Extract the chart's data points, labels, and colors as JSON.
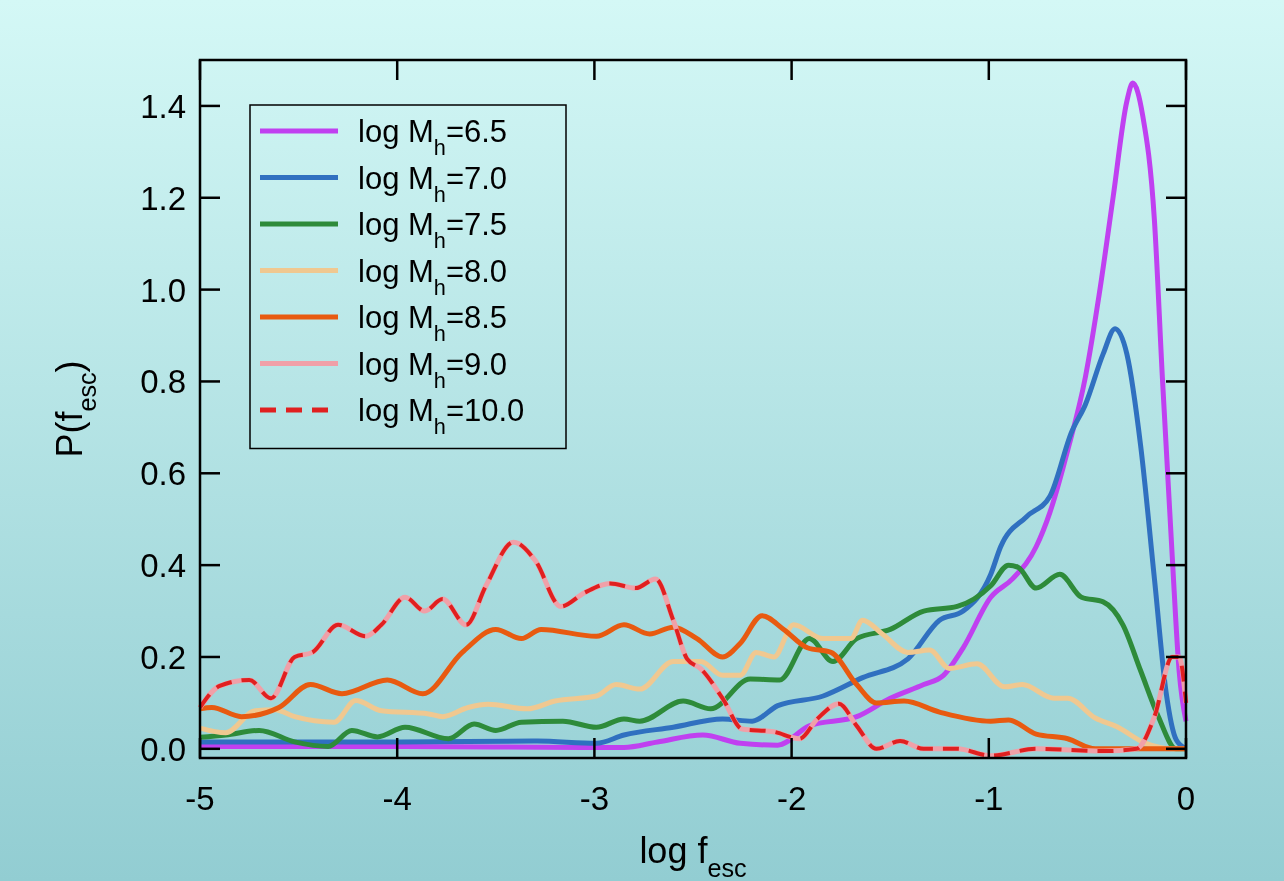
{
  "chart_data": {
    "type": "line",
    "xlabel": "log f$_{esc}$",
    "ylabel": "P(f$_{esc}$)",
    "xlim": [
      -5,
      0
    ],
    "ylim": [
      -0.02,
      1.5
    ],
    "xticks": [
      -5,
      -4,
      -3,
      -2,
      -1,
      0
    ],
    "yticks": [
      {
        "value": 0,
        "label": "0.0"
      },
      0.2,
      0.4,
      0.6,
      0.8,
      {
        "value": 1,
        "label": "1.0"
      },
      1.2,
      1.4
    ],
    "grid": false,
    "legend": "top left",
    "series": [
      {
        "name": "log M$_{h}$=6.5",
        "color": "#c040f0",
        "x": [
          -5,
          -4,
          -3.02,
          -2.85,
          -2.68,
          -2.45,
          -2.26,
          -2.07,
          -1.91,
          -1.67,
          -1.5,
          -1.33,
          -1.23,
          -1.13,
          -0.99,
          -0.88,
          -0.76,
          -0.69,
          -0.6,
          -0.51,
          -0.44,
          -0.37,
          -0.3,
          -0.27,
          -0.22,
          -0.16,
          -0.12,
          -0.07,
          -0.035,
          0
        ],
        "values": [
          0.005,
          0.005,
          0.003,
          0.003,
          0.015,
          0.03,
          0.012,
          0.008,
          0.05,
          0.07,
          0.11,
          0.14,
          0.16,
          0.22,
          0.33,
          0.37,
          0.44,
          0.515,
          0.65,
          0.81,
          0.99,
          1.2,
          1.41,
          1.45,
          1.38,
          1.15,
          0.81,
          0.42,
          0.17,
          0.06
        ]
      },
      {
        "name": "log M$_{h}$=7.0",
        "color": "#3070c0",
        "x": [
          -5,
          -4,
          -3.29,
          -2.99,
          -2.85,
          -2.6,
          -2.35,
          -2.2,
          -2.07,
          -1.84,
          -1.64,
          -1.41,
          -1.25,
          -1.13,
          -0.99,
          -0.94,
          -0.81,
          -0.69,
          -0.58,
          -0.51,
          -0.42,
          -0.36,
          -0.3,
          -0.23,
          -0.16,
          -0.1,
          -0.05,
          0
        ],
        "values": [
          0.015,
          0.015,
          0.017,
          0.012,
          0.03,
          0.047,
          0.065,
          0.06,
          0.094,
          0.115,
          0.155,
          0.196,
          0.28,
          0.3,
          0.38,
          0.44,
          0.505,
          0.55,
          0.69,
          0.75,
          0.86,
          0.915,
          0.86,
          0.66,
          0.37,
          0.12,
          0.02,
          0
        ]
      },
      {
        "name": "log M$_{h}$=7.5",
        "color": "#2e8b3a",
        "x": [
          -5,
          -4.87,
          -4.7,
          -4.52,
          -4.35,
          -4.23,
          -4.1,
          -3.96,
          -3.74,
          -3.61,
          -3.5,
          -3.37,
          -3.16,
          -2.99,
          -2.85,
          -2.77,
          -2.55,
          -2.41,
          -2.21,
          -2.06,
          -1.91,
          -1.79,
          -1.67,
          -1.5,
          -1.33,
          -1.16,
          -0.99,
          -0.9,
          -0.85,
          -0.76,
          -0.64,
          -0.53,
          -0.42,
          -0.32,
          -0.23,
          -0.14,
          -0.05,
          0
        ],
        "values": [
          0.025,
          0.03,
          0.04,
          0.015,
          0.005,
          0.04,
          0.026,
          0.047,
          0.022,
          0.054,
          0.04,
          0.058,
          0.06,
          0.047,
          0.065,
          0.06,
          0.104,
          0.087,
          0.152,
          0.15,
          0.24,
          0.19,
          0.24,
          0.26,
          0.3,
          0.31,
          0.355,
          0.4,
          0.395,
          0.35,
          0.38,
          0.33,
          0.32,
          0.27,
          0.17,
          0.07,
          0.0,
          0
        ]
      },
      {
        "name": "log M$_{h}$=8.0",
        "color": "#f0c890",
        "x": [
          -5,
          -4.87,
          -4.72,
          -4.62,
          -4.52,
          -4.32,
          -4.21,
          -4.08,
          -3.84,
          -3.77,
          -3.64,
          -3.54,
          -3.34,
          -3.2,
          -2.99,
          -2.89,
          -2.77,
          -2.6,
          -2.46,
          -2.35,
          -2.26,
          -2.18,
          -2.09,
          -1.99,
          -1.84,
          -1.7,
          -1.64,
          -1.54,
          -1.41,
          -1.3,
          -1.2,
          -1.06,
          -0.92,
          -0.83,
          -0.67,
          -0.6,
          -0.46,
          -0.35,
          -0.21,
          -0.07,
          0
        ],
        "values": [
          0.045,
          0.035,
          0.083,
          0.085,
          0.07,
          0.058,
          0.105,
          0.083,
          0.076,
          0.07,
          0.09,
          0.097,
          0.087,
          0.104,
          0.115,
          0.14,
          0.13,
          0.19,
          0.19,
          0.16,
          0.16,
          0.21,
          0.2,
          0.27,
          0.24,
          0.24,
          0.28,
          0.25,
          0.21,
          0.215,
          0.175,
          0.185,
          0.135,
          0.14,
          0.11,
          0.11,
          0.067,
          0.048,
          0.013,
          0.0,
          0
        ]
      },
      {
        "name": "log M$_{h}$=8.5",
        "color": "#e85a10",
        "x": [
          -5,
          -4.94,
          -4.79,
          -4.6,
          -4.44,
          -4.28,
          -4.05,
          -3.87,
          -3.67,
          -3.5,
          -3.37,
          -3.27,
          -2.99,
          -2.85,
          -2.72,
          -2.6,
          -2.48,
          -2.35,
          -2.26,
          -2.15,
          -2.04,
          -1.92,
          -1.8,
          -1.67,
          -1.57,
          -1.43,
          -1.25,
          -0.99,
          -0.9,
          -0.76,
          -0.6,
          -0.46,
          0
        ],
        "values": [
          0.087,
          0.09,
          0.07,
          0.09,
          0.14,
          0.12,
          0.15,
          0.12,
          0.21,
          0.26,
          0.24,
          0.26,
          0.245,
          0.27,
          0.25,
          0.265,
          0.24,
          0.2,
          0.23,
          0.29,
          0.26,
          0.22,
          0.21,
          0.14,
          0.1,
          0.104,
          0.08,
          0.06,
          0.063,
          0.032,
          0.022,
          0.0,
          0
        ]
      },
      {
        "name": "log M$_{h}$=9.0",
        "color": "#f0a0a8",
        "x": [
          -5,
          -4.9,
          -4.75,
          -4.64,
          -4.52,
          -4.43,
          -4.3,
          -4.16,
          -4.08,
          -3.96,
          -3.86,
          -3.77,
          -3.65,
          -3.55,
          -3.41,
          -3.3,
          -3.17,
          -3.05,
          -2.92,
          -2.79,
          -2.69,
          -2.6,
          -2.53,
          -2.46,
          -2.35,
          -2.25,
          -2.09,
          -1.96,
          -1.87,
          -1.76,
          -1.67,
          -1.57,
          -1.45,
          -1.33,
          -1.16,
          -0.99,
          -0.76,
          -0.42,
          -0.25,
          -0.16,
          -0.07,
          -0.035,
          0
        ],
        "values": [
          0.09,
          0.137,
          0.15,
          0.11,
          0.2,
          0.21,
          0.27,
          0.245,
          0.27,
          0.33,
          0.3,
          0.326,
          0.27,
          0.355,
          0.45,
          0.41,
          0.31,
          0.34,
          0.36,
          0.35,
          0.37,
          0.28,
          0.196,
          0.174,
          0.11,
          0.043,
          0.037,
          0.022,
          0.065,
          0.098,
          0.05,
          0.0,
          0.017,
          0.0,
          0.0,
          -0.015,
          0.0,
          -0.005,
          0.0,
          0.07,
          0.2,
          0.2,
          0.1
        ]
      },
      {
        "name": "log M$_{h}$=10.0",
        "color": "#e02020",
        "line_style": "dashed",
        "x": [
          -5,
          -4.9,
          -4.75,
          -4.64,
          -4.52,
          -4.43,
          -4.3,
          -4.16,
          -4.08,
          -3.96,
          -3.86,
          -3.77,
          -3.65,
          -3.55,
          -3.41,
          -3.3,
          -3.17,
          -3.05,
          -2.92,
          -2.79,
          -2.69,
          -2.6,
          -2.53,
          -2.46,
          -2.35,
          -2.25,
          -2.09,
          -1.96,
          -1.87,
          -1.76,
          -1.67,
          -1.57,
          -1.45,
          -1.33,
          -1.16,
          -0.99,
          -0.76,
          -0.42,
          -0.25,
          -0.16,
          -0.07,
          -0.035,
          0
        ],
        "values": [
          0.09,
          0.137,
          0.15,
          0.11,
          0.2,
          0.21,
          0.27,
          0.245,
          0.27,
          0.33,
          0.3,
          0.326,
          0.27,
          0.355,
          0.45,
          0.41,
          0.31,
          0.34,
          0.36,
          0.35,
          0.37,
          0.28,
          0.196,
          0.174,
          0.11,
          0.043,
          0.037,
          0.022,
          0.065,
          0.098,
          0.05,
          0.0,
          0.017,
          0.0,
          0.0,
          -0.015,
          0.0,
          -0.005,
          0.0,
          0.07,
          0.2,
          0.2,
          0.1
        ]
      }
    ]
  }
}
